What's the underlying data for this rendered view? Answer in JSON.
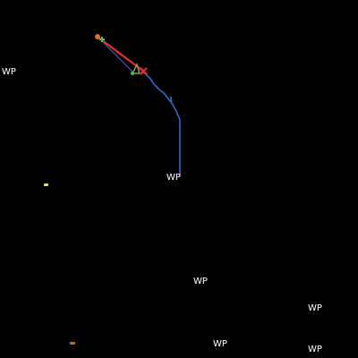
{
  "waypoint_label": "WP",
  "colors": {
    "background": "#000000",
    "track": "#3a63b8",
    "route": "#e03030",
    "label": "#ffffff",
    "marker_green": "#4fbf4f",
    "marker_orange": "#e0702a",
    "marker_yellow": "#e8e060",
    "marker_brown": "#b0703a",
    "marker_olive": "#9a9a40",
    "thin_line": "#5a5ac8"
  }
}
